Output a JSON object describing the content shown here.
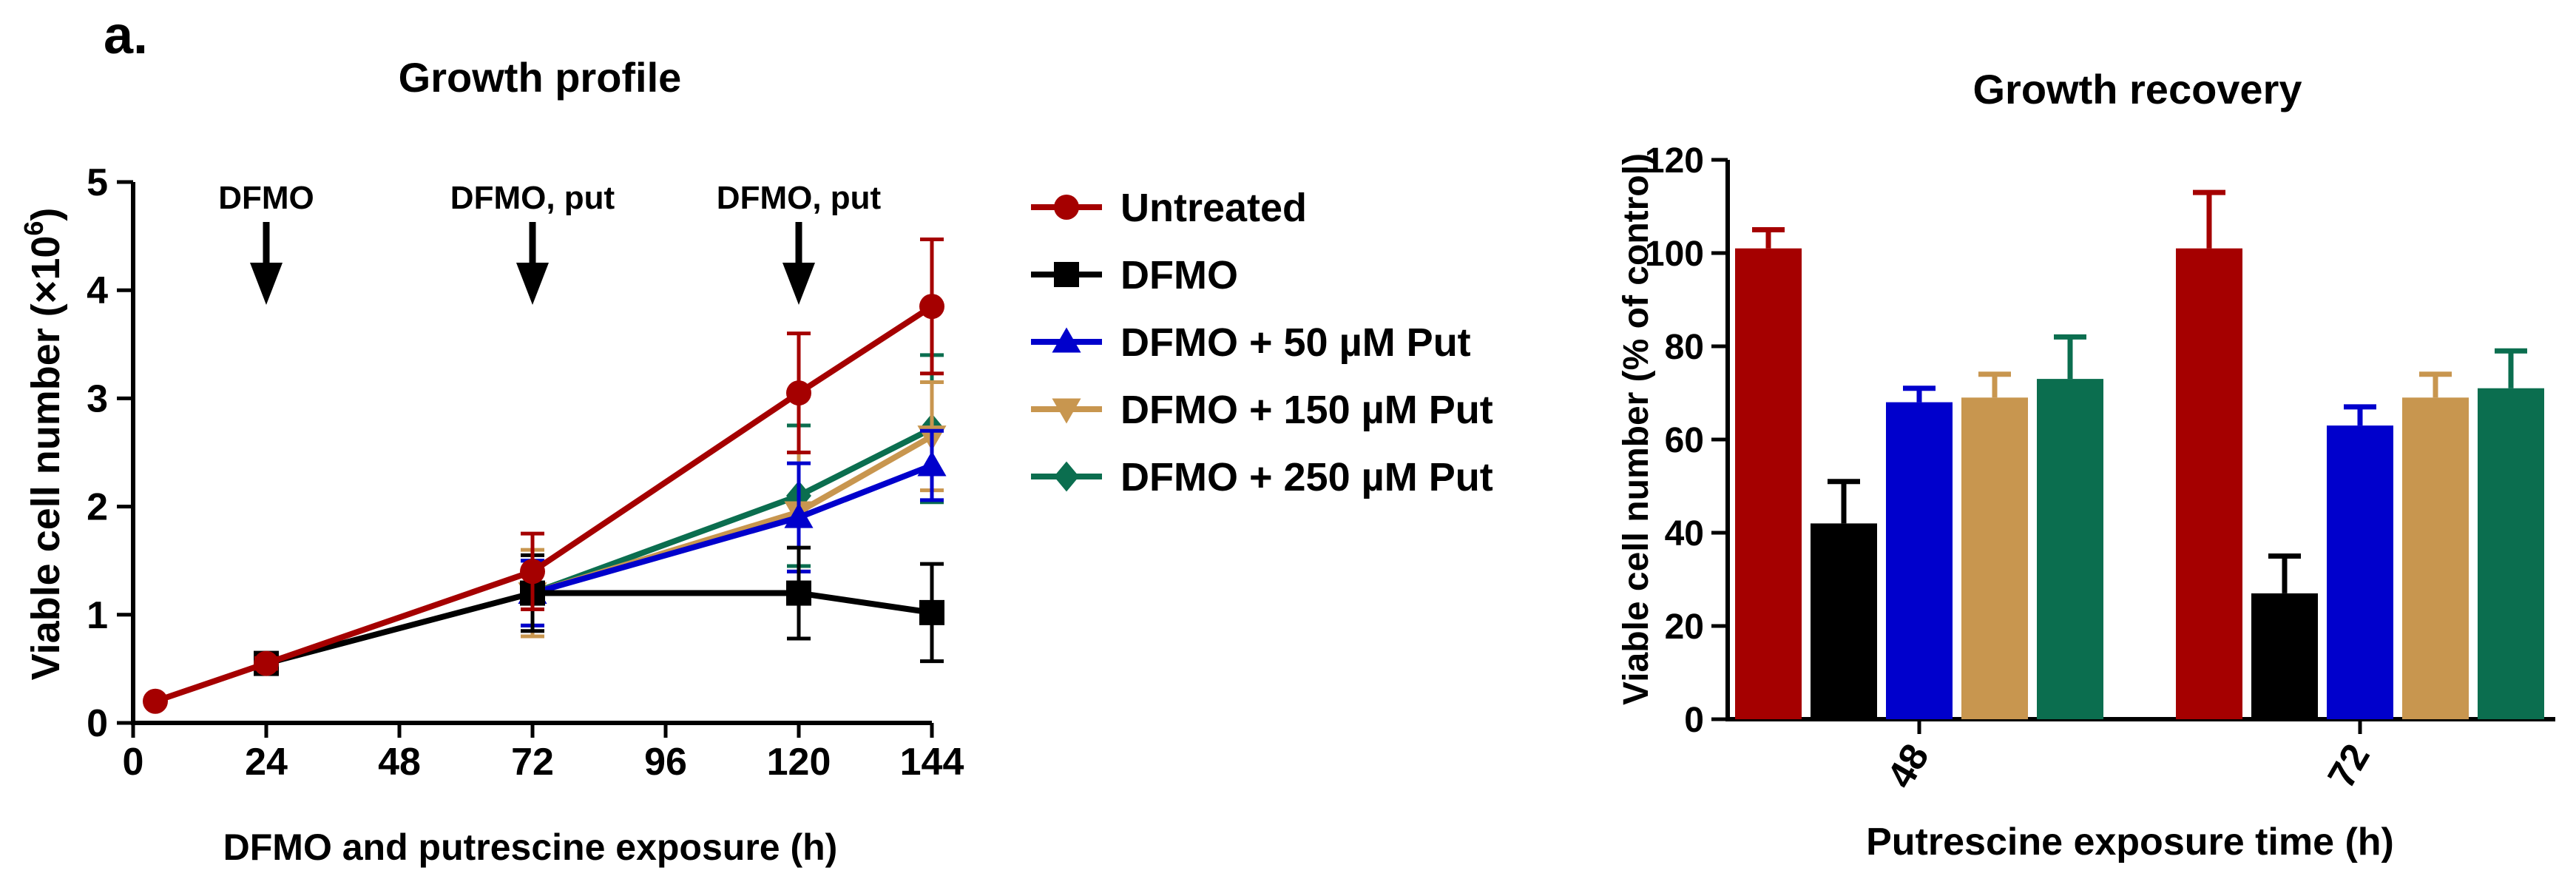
{
  "panel_label": "a.",
  "colors": {
    "untreated": "#a50000",
    "dfmo": "#000000",
    "put50": "#0000cc",
    "put150": "#c8964f",
    "put250": "#0b6e4f"
  },
  "chart_data": [
    {
      "type": "line",
      "title": "Growth profile",
      "xlabel": "DFMO and putrescine exposure (h)",
      "ylabel": "Viable cell number (×10",
      "ylabel_sup": "6",
      "ylabel_close": ")",
      "xlim": [
        0,
        144
      ],
      "ylim": [
        0,
        5
      ],
      "xticks": [
        0,
        24,
        48,
        72,
        96,
        120,
        144
      ],
      "yticks": [
        0,
        1,
        2,
        3,
        4,
        5
      ],
      "annotations": [
        {
          "text": "DFMO",
          "x": 24
        },
        {
          "text": "DFMO, put",
          "x": 72
        },
        {
          "text": "DFMO, put",
          "x": 120
        }
      ],
      "legend_position": "right",
      "series": [
        {
          "name": "Untreated",
          "color_key": "untreated",
          "marker": "circle",
          "x": [
            4,
            24,
            72,
            120,
            144
          ],
          "y": [
            0.2,
            0.55,
            1.4,
            3.05,
            3.85
          ],
          "err": [
            0.02,
            0.05,
            0.35,
            0.55,
            0.62
          ]
        },
        {
          "name": "DFMO",
          "color_key": "dfmo",
          "marker": "square",
          "x": [
            24,
            72,
            120,
            144
          ],
          "y": [
            0.55,
            1.2,
            1.2,
            1.02
          ],
          "err": [
            0.05,
            0.35,
            0.42,
            0.45
          ]
        },
        {
          "name": "DFMO + 50 µM Put",
          "color_key": "put50",
          "marker": "triangle-up",
          "x": [
            72,
            120,
            144
          ],
          "y": [
            1.2,
            1.9,
            2.38
          ],
          "err": [
            0.3,
            0.5,
            0.32
          ]
        },
        {
          "name": "DFMO + 150 µM Put",
          "color_key": "put150",
          "marker": "triangle-down",
          "x": [
            72,
            120,
            144
          ],
          "y": [
            1.2,
            1.95,
            2.65
          ],
          "err": [
            0.4,
            0.55,
            0.5
          ]
        },
        {
          "name": "DFMO + 250 µM Put",
          "color_key": "put250",
          "marker": "diamond",
          "x": [
            72,
            120,
            144
          ],
          "y": [
            1.2,
            2.1,
            2.72
          ],
          "err": [
            0.3,
            0.65,
            0.68
          ]
        }
      ]
    },
    {
      "type": "bar",
      "title": "Growth recovery",
      "xlabel": "Putrescine exposure time (h)",
      "ylabel": "Viable cell number (% of control)",
      "ylim": [
        0,
        120
      ],
      "yticks": [
        0,
        20,
        40,
        60,
        80,
        100,
        120
      ],
      "categories": [
        "48",
        "72"
      ],
      "series": [
        {
          "name": "Untreated",
          "color_key": "untreated",
          "values": [
            101,
            101
          ],
          "err": [
            4,
            12
          ]
        },
        {
          "name": "DFMO",
          "color_key": "dfmo",
          "values": [
            42,
            27
          ],
          "err": [
            9,
            8
          ]
        },
        {
          "name": "DFMO + 50 µM Put",
          "color_key": "put50",
          "values": [
            68,
            63
          ],
          "err": [
            3,
            4
          ]
        },
        {
          "name": "DFMO + 150 µM Put",
          "color_key": "put150",
          "values": [
            69,
            69
          ],
          "err": [
            5,
            5
          ]
        },
        {
          "name": "DFMO + 250 µM Put",
          "color_key": "put250",
          "values": [
            73,
            71
          ],
          "err": [
            9,
            8
          ]
        }
      ]
    }
  ]
}
